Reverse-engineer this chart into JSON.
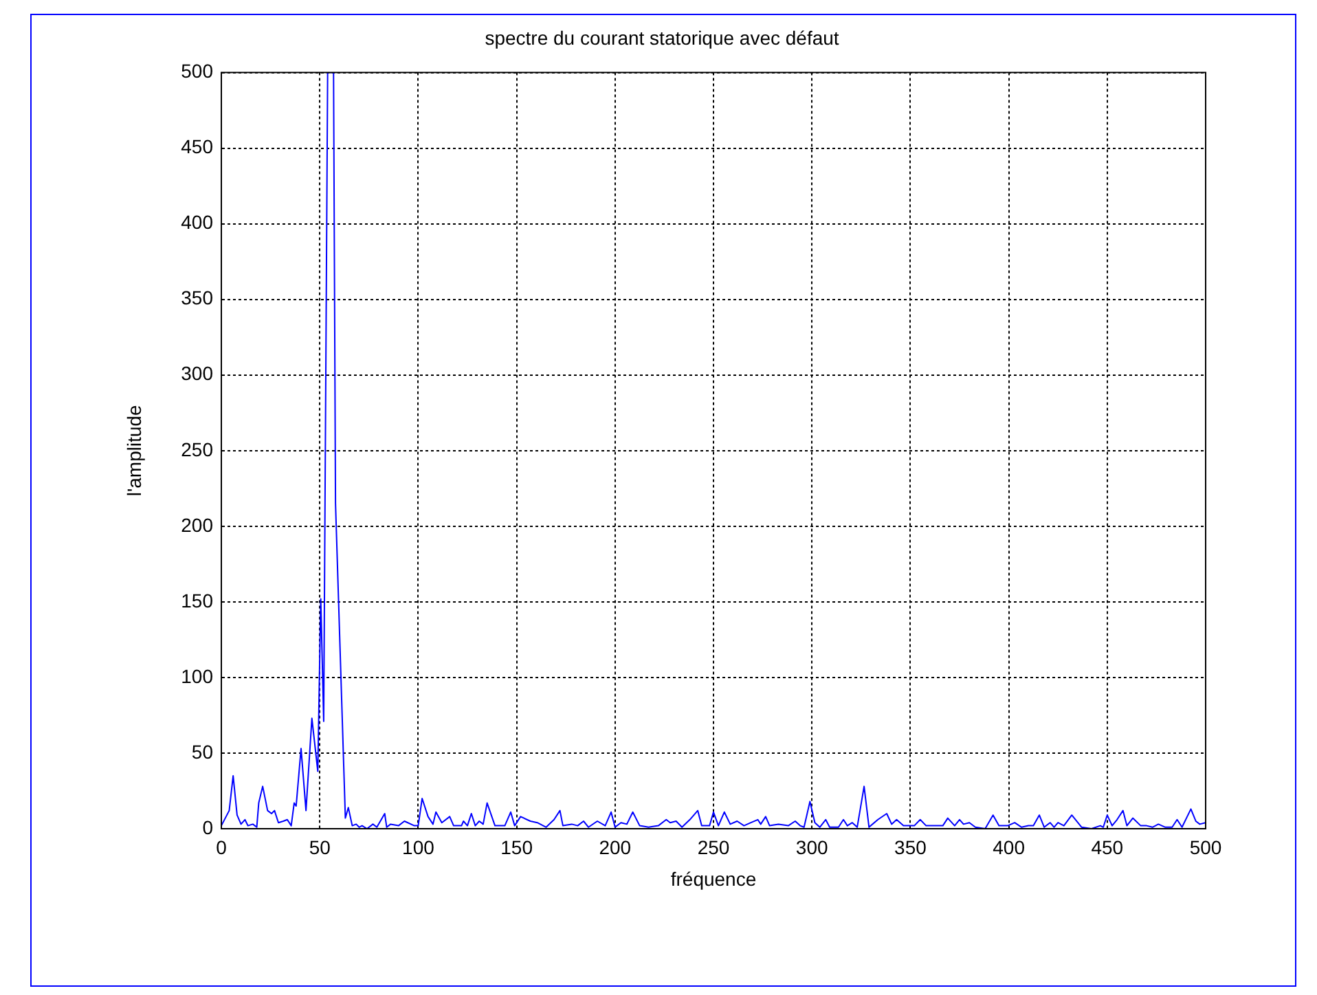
{
  "chart_data": {
    "type": "line",
    "title": "spectre du courant statorique avec défaut",
    "xlabel": "fréquence",
    "ylabel": "l'amplitude",
    "xlim": [
      0,
      500
    ],
    "xticks": [
      0,
      50,
      100,
      150,
      200,
      250,
      300,
      350,
      400,
      450,
      500
    ],
    "ylim": [
      0,
      500
    ],
    "yticks": [
      0,
      50,
      100,
      150,
      200,
      250,
      300,
      350,
      400,
      450,
      500
    ],
    "grid": true,
    "legend": false,
    "marker": "none",
    "line_style": "solid",
    "series": [
      {
        "color": "#0000ff",
        "x": [
          0,
          4,
          6,
          8,
          10,
          12,
          13.5,
          16,
          18,
          19,
          21,
          23.5,
          25.5,
          27,
          29,
          31.5,
          33.5,
          35.5,
          37,
          38,
          40.5,
          43,
          46,
          49,
          50.5,
          52,
          54,
          55.5,
          57,
          58,
          63,
          64.5,
          66.5,
          68.5,
          70,
          71.5,
          74,
          77,
          79,
          83,
          84,
          86,
          90,
          93,
          98,
          100,
          102,
          105,
          107.5,
          109,
          112,
          116,
          118,
          122,
          123,
          125,
          127,
          129,
          131,
          133,
          135,
          139,
          144,
          147,
          149,
          152,
          157,
          160.5,
          165,
          169,
          172,
          173.5,
          178,
          181,
          184,
          186.5,
          191,
          195,
          198,
          200,
          203,
          206,
          209,
          212.5,
          217,
          222,
          226,
          228,
          231,
          234,
          238,
          242,
          244,
          248,
          250,
          252.5,
          255.5,
          258.5,
          262,
          265.5,
          269,
          272.5,
          274,
          276.5,
          278.5,
          283,
          288,
          291.5,
          294,
          296,
          299,
          301.5,
          304,
          307,
          309,
          313.5,
          316,
          318,
          320.5,
          323,
          326.5,
          329,
          333.5,
          338,
          340.5,
          343,
          346.5,
          350,
          352,
          355,
          358,
          362,
          366.5,
          369,
          372.5,
          375,
          377,
          380,
          383,
          388,
          392,
          395,
          399.5,
          403,
          406.5,
          410,
          412.5,
          415.5,
          418,
          421,
          423,
          425,
          428,
          432,
          437,
          442,
          446.5,
          448,
          450,
          452.5,
          455,
          458,
          460,
          463,
          467,
          470,
          473,
          476,
          479.5,
          483,
          485.5,
          488,
          492.5,
          495,
          497,
          500
        ],
        "values": [
          2,
          12,
          35,
          9,
          3,
          6,
          2,
          3,
          1,
          17,
          28,
          12,
          10,
          12,
          4,
          5,
          6,
          2,
          17,
          15,
          53,
          12,
          73,
          38,
          152,
          71,
          500,
          500,
          500,
          215,
          7,
          14,
          2,
          3,
          1,
          2,
          0,
          3,
          1,
          10,
          1,
          3,
          2,
          5,
          2,
          2,
          20,
          8,
          3,
          11,
          4,
          8,
          2,
          2,
          5,
          2,
          10,
          2,
          5,
          3,
          17,
          2,
          2,
          11,
          2,
          8,
          5,
          4,
          1,
          6,
          12,
          2,
          3,
          2,
          5,
          1,
          5,
          2,
          11,
          1,
          4,
          3,
          11,
          2,
          1,
          2,
          6,
          4,
          5,
          1,
          6,
          12,
          2,
          2,
          11,
          2,
          11,
          3,
          5,
          2,
          4,
          6,
          3,
          8,
          2,
          3,
          2,
          5,
          2,
          1,
          18,
          4,
          1,
          6,
          1,
          1,
          6,
          2,
          4,
          1,
          28,
          1,
          6,
          10,
          3,
          6,
          2,
          2,
          2,
          6,
          2,
          2,
          2,
          7,
          2,
          6,
          3,
          4,
          1,
          0,
          9,
          2,
          2,
          4,
          1,
          2,
          2,
          9,
          1,
          4,
          1,
          4,
          2,
          9,
          1,
          0,
          2,
          1,
          9,
          2,
          6,
          12,
          2,
          7,
          2,
          2,
          1,
          3,
          1,
          1,
          6,
          1,
          13,
          5,
          3,
          4
        ]
      }
    ]
  }
}
